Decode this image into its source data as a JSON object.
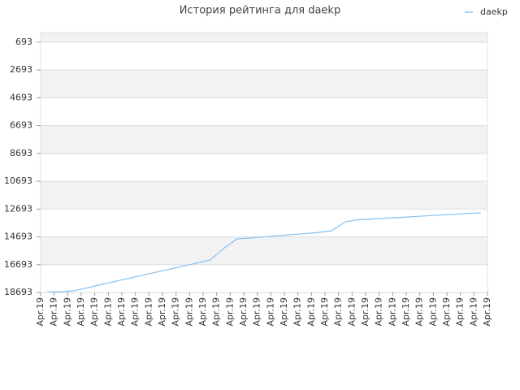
{
  "chart_data": {
    "type": "line",
    "title": "История рейтинга для daekp",
    "categories": [
      "Apr.19",
      "Apr.19",
      "Apr.19",
      "Apr.19",
      "Apr.19",
      "Apr.19",
      "Apr.19",
      "Apr.19",
      "Apr.19",
      "Apr.19",
      "Apr.19",
      "Apr.19",
      "Apr.19",
      "Apr.19",
      "Apr.19",
      "Apr.19",
      "Apr.19",
      "Apr.19",
      "Apr.19",
      "Apr.19",
      "Apr.19",
      "Apr.19",
      "Apr.19",
      "Apr.19",
      "Apr.19",
      "Apr.19",
      "Apr.19",
      "Apr.19",
      "Apr.19",
      "Apr.19",
      "Apr.19",
      "Apr.19",
      "Apr.19",
      "Apr.19"
    ],
    "series": [
      {
        "name": "daekp",
        "color": "#8ec4f0",
        "values": [
          18640,
          18640,
          18560,
          18340,
          18120,
          17900,
          17680,
          17460,
          17240,
          17020,
          16800,
          16580,
          16360,
          15540,
          14840,
          14770,
          14690,
          14610,
          14540,
          14460,
          14380,
          14250,
          13610,
          13460,
          13410,
          13350,
          13300,
          13240,
          13180,
          13120,
          13070,
          13010,
          12970,
          null
        ]
      }
    ],
    "ylim": [
      18693,
      0
    ],
    "yticks": [
      693,
      2693,
      4693,
      6693,
      8693,
      10693,
      12693,
      14693,
      16693,
      18693
    ],
    "grid": true,
    "legend": "top-right"
  }
}
